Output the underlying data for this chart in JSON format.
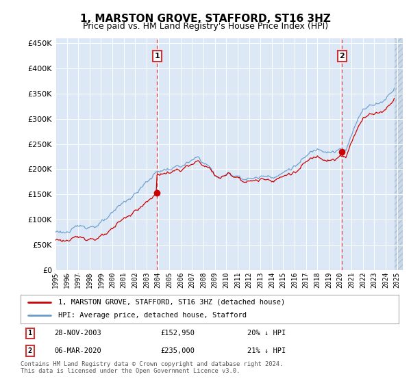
{
  "title": "1, MARSTON GROVE, STAFFORD, ST16 3HZ",
  "subtitle": "Price paid vs. HM Land Registry's House Price Index (HPI)",
  "title_fontsize": 11,
  "subtitle_fontsize": 9,
  "background_color": "#ffffff",
  "plot_background_color": "#dce8f5",
  "hatch_background_color": "#c8d8e8",
  "grid_color": "#ffffff",
  "ylim": [
    0,
    460000
  ],
  "yticks": [
    0,
    50000,
    100000,
    150000,
    200000,
    250000,
    300000,
    350000,
    400000,
    450000
  ],
  "legend_house_label": "1, MARSTON GROVE, STAFFORD, ST16 3HZ (detached house)",
  "legend_hpi_label": "HPI: Average price, detached house, Stafford",
  "house_color": "#cc0000",
  "hpi_color": "#6699cc",
  "annotation1_label": "1",
  "annotation1_date": "28-NOV-2003",
  "annotation1_price": "£152,950",
  "annotation1_hpi": "20% ↓ HPI",
  "annotation2_label": "2",
  "annotation2_date": "06-MAR-2020",
  "annotation2_price": "£235,000",
  "annotation2_hpi": "21% ↓ HPI",
  "footer": "Contains HM Land Registry data © Crown copyright and database right 2024.\nThis data is licensed under the Open Government Licence v3.0.",
  "xmin": 1995.0,
  "xmax": 2025.5,
  "data_end": 2024.75,
  "sale1_x": 2003.92,
  "sale1_y": 152950,
  "sale2_x": 2020.17,
  "sale2_y": 235000
}
